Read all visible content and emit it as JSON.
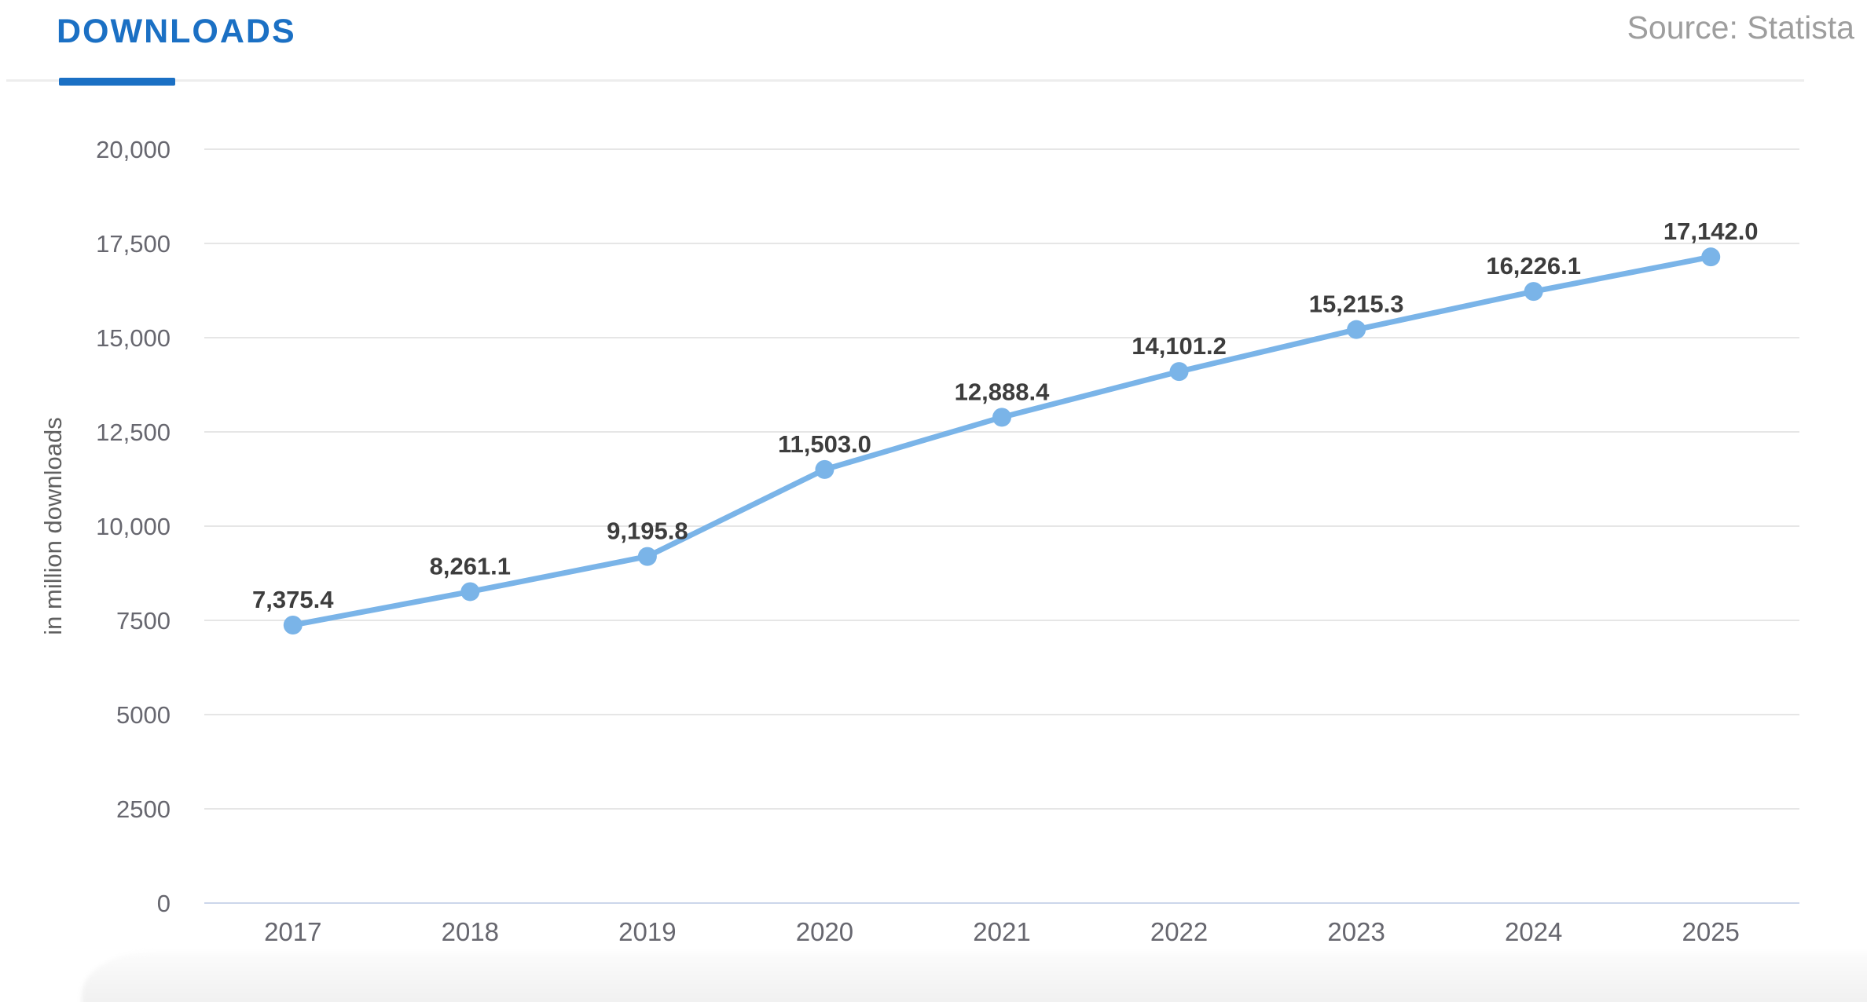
{
  "header": {
    "tab_label": "DOWNLOADS",
    "source_label": "Source: Statista"
  },
  "chart_data": {
    "type": "line",
    "title": "DOWNLOADS",
    "xlabel": "",
    "ylabel": "in million downloads",
    "categories": [
      "2017",
      "2018",
      "2019",
      "2020",
      "2021",
      "2022",
      "2023",
      "2024",
      "2025"
    ],
    "series": [
      {
        "name": "Downloads",
        "values": [
          7375.4,
          8261.1,
          9195.8,
          11503.0,
          12888.4,
          14101.2,
          15215.3,
          16226.1,
          17142.0
        ]
      }
    ],
    "point_labels": [
      "7,375.4",
      "8,261.1",
      "9,195.8",
      "11,503.0",
      "12,888.4",
      "14,101.2",
      "15,215.3",
      "16,226.1",
      "17,142.0"
    ],
    "y_ticks": [
      {
        "value": 0,
        "label": "0"
      },
      {
        "value": 2500,
        "label": "2500"
      },
      {
        "value": 5000,
        "label": "5000"
      },
      {
        "value": 7500,
        "label": "7500"
      },
      {
        "value": 10000,
        "label": "10,000"
      },
      {
        "value": 12500,
        "label": "12,500"
      },
      {
        "value": 15000,
        "label": "15,000"
      },
      {
        "value": 17500,
        "label": "17,500"
      },
      {
        "value": 20000,
        "label": "20,000"
      }
    ],
    "ylim": [
      0,
      20000
    ],
    "grid": true,
    "legend": "none"
  },
  "colors": {
    "accent_blue": "#1b70c4",
    "line_blue": "#7ab4e8",
    "gridline": "#e6e6e6",
    "axis_line": "#ccd6eb",
    "tick_text": "#67676f",
    "axis_title_text": "#606060",
    "data_label_text": "#3d3d3d",
    "source_text": "#9e9e9e",
    "separator": "#ededed",
    "bottom_band": "#f1f1f1"
  }
}
